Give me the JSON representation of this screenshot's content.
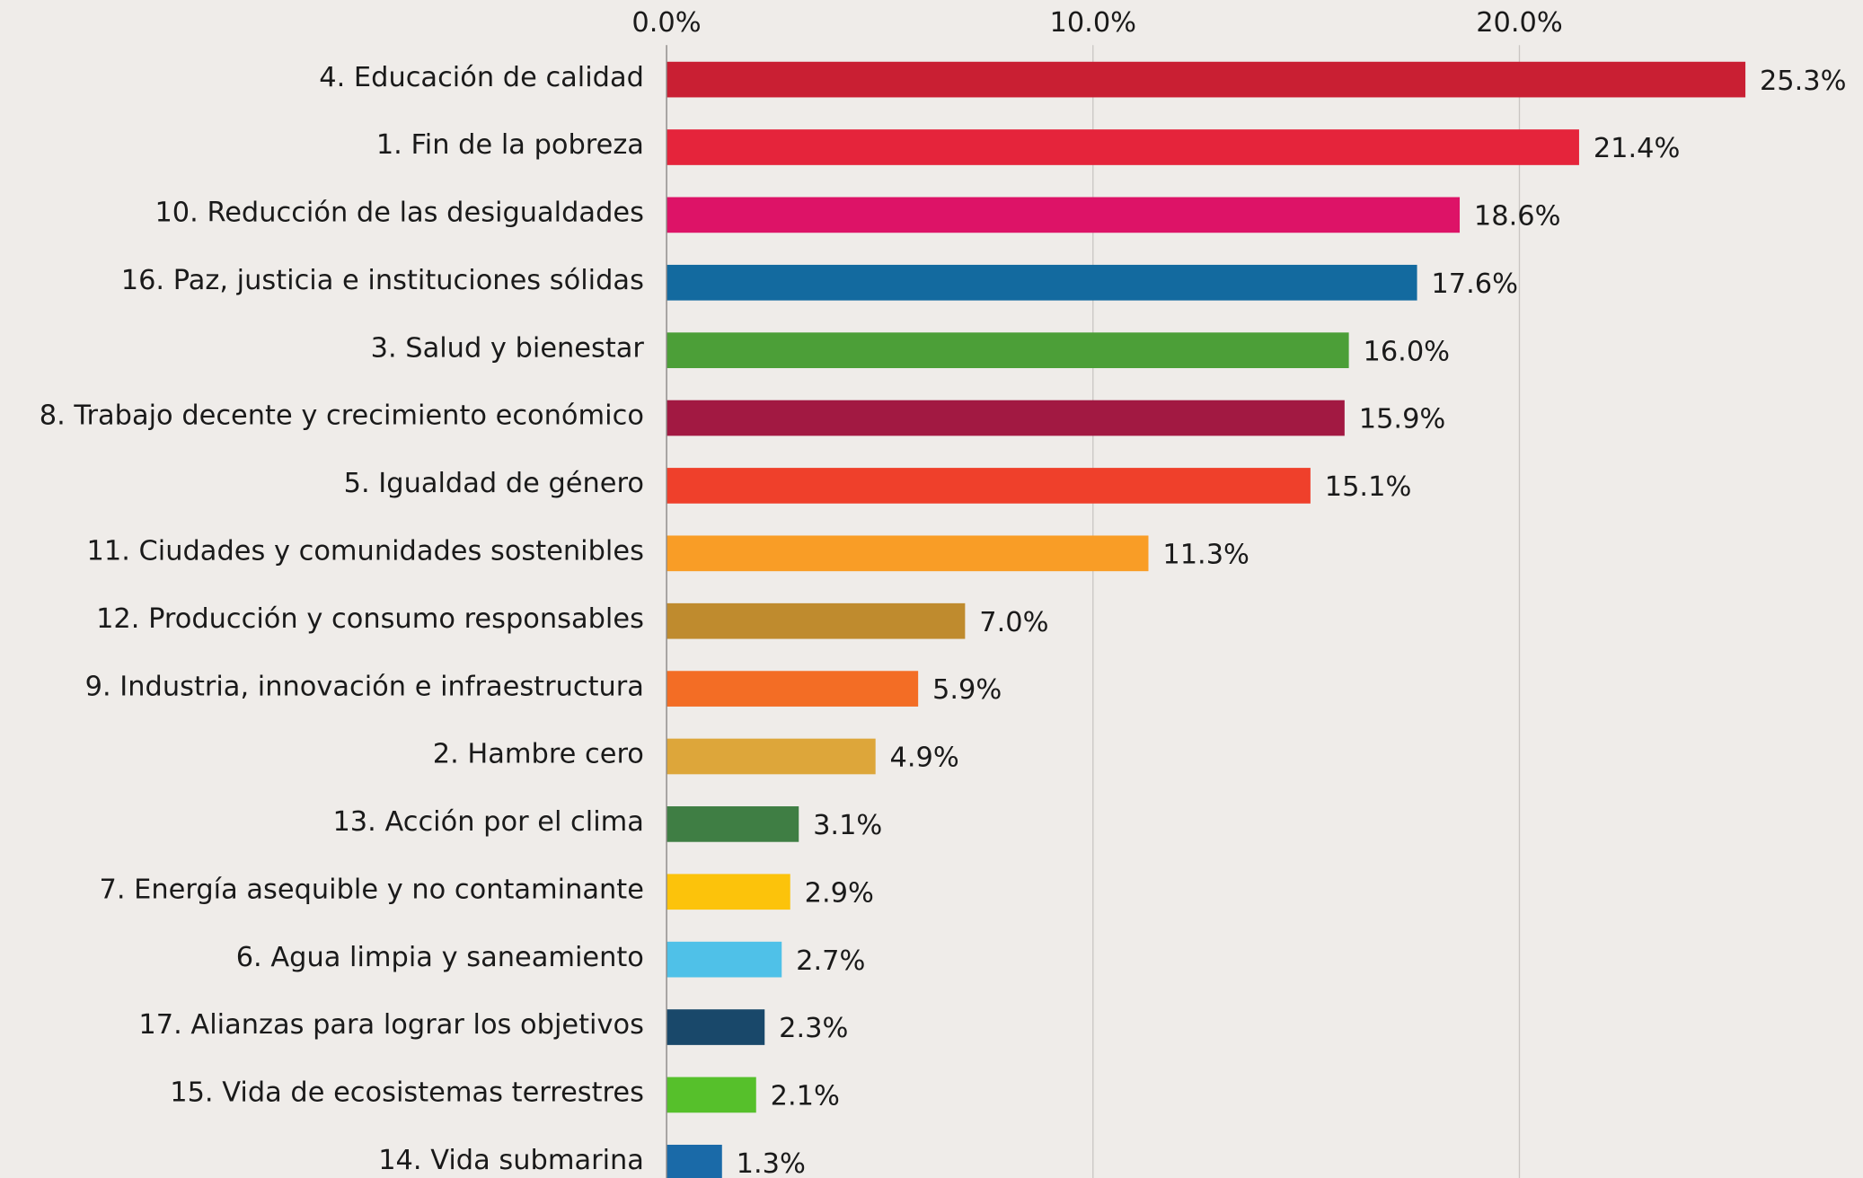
{
  "chart_data": {
    "type": "barh",
    "categories": [
      "4. Educación de calidad",
      "1. Fin de la pobreza",
      "10. Reducción de las desigualdades",
      "16. Paz, justicia e instituciones sólidas",
      "3. Salud y bienestar",
      "8. Trabajo decente y crecimiento económico",
      "5. Igualdad de género",
      "11. Ciudades y comunidades sostenibles",
      "12. Producción y consumo responsables",
      "9. Industria, innovación e infraestructura",
      "2. Hambre cero",
      "13. Acción por el clima",
      "7. Energía asequible y no contaminante",
      "6. Agua limpia y saneamiento",
      "17. Alianzas para lograr los objetivos",
      "15. Vida de ecosistemas terrestres",
      "14. Vida submarina"
    ],
    "values": [
      25.3,
      21.4,
      18.6,
      17.6,
      16.0,
      15.9,
      15.1,
      11.3,
      7.0,
      5.9,
      4.9,
      3.1,
      2.9,
      2.7,
      2.3,
      2.1,
      1.3
    ],
    "value_labels": [
      "25.3%",
      "21.4%",
      "18.6%",
      "17.6%",
      "16.0%",
      "15.9%",
      "15.1%",
      "11.3%",
      "7.0%",
      "5.9%",
      "4.9%",
      "3.1%",
      "2.9%",
      "2.7%",
      "2.3%",
      "2.1%",
      "1.3%"
    ],
    "colors": [
      "#c91f33",
      "#e5243b",
      "#dd1367",
      "#136a9f",
      "#4c9f38",
      "#a21942",
      "#ef402b",
      "#f99d26",
      "#bf8b2e",
      "#f36d25",
      "#dda63a",
      "#3f7e44",
      "#fcc30b",
      "#4fc1e8",
      "#19486a",
      "#56c02b",
      "#1a6aa8"
    ],
    "xlim": [
      0,
      28
    ],
    "xticks": [
      {
        "value": 0,
        "label": "0.0%"
      },
      {
        "value": 10,
        "label": "10.0%"
      },
      {
        "value": 20,
        "label": "20.0%"
      }
    ],
    "grid": true
  }
}
